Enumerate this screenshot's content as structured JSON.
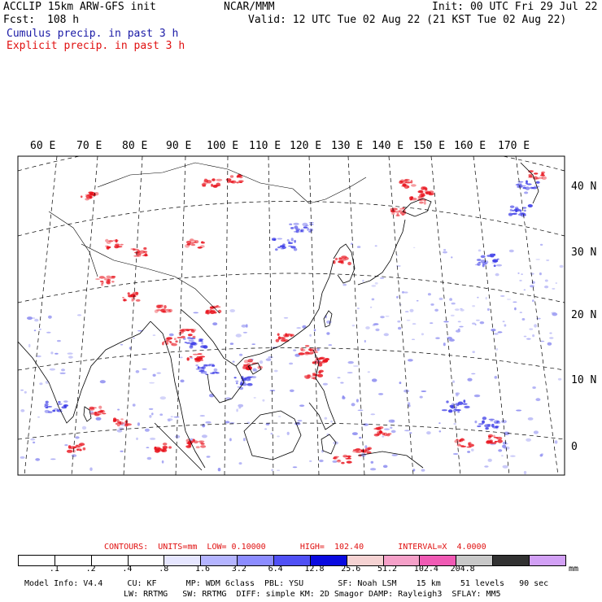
{
  "header": {
    "model": "ACCLIP 15km ARW-GFS init",
    "org": "NCAR/MMM",
    "init": "Init: 00 UTC Fri 29 Jul 22",
    "fcst_label": "Fcst:",
    "fcst_value": "108 h",
    "valid": "Valid: 12 UTC Tue 02 Aug 22 (21 KST Tue 02 Aug 22)",
    "legend_cumulus": "Cumulus precip. in past 3 h",
    "legend_explicit": "Explicit precip. in past 3 h"
  },
  "map": {
    "lon_labels": [
      "60 E",
      "70 E",
      "80 E",
      "90 E",
      "100 E",
      "110 E",
      "120 E",
      "130 E",
      "140 E",
      "150 E",
      "160 E",
      "170 E"
    ],
    "lat_labels": [
      "40 N",
      "30 N",
      "20 N",
      "10 N",
      "0"
    ],
    "colors": {
      "cumulus": "#3a3ae6",
      "explicit": "#e8101a",
      "coast": "#000000",
      "grid": "#000000"
    }
  },
  "contours": {
    "label": "CONTOURS:  UNITS=mm  LOW= 0.10000       HIGH=  102.40       INTERVAL=X  4.0000"
  },
  "colorbar": {
    "colors": [
      "#ffffff",
      "#ffffff",
      "#ffffff",
      "#ffffff",
      "#e6e6ff",
      "#b4b4ff",
      "#8c8cff",
      "#5050f5",
      "#0a0ae0",
      "#f5d2d2",
      "#f5a0c8",
      "#f05ab4",
      "#c8c8c8",
      "#323232",
      "#d2a0f5"
    ],
    "ticks": [
      ".1",
      ".2",
      ".4",
      ".8",
      "1.6",
      "3.2",
      "6.4",
      "12.8",
      "25.6",
      "51.2",
      "102.4",
      "204.8"
    ],
    "unit": "mm"
  },
  "footer": {
    "line1": "Model Info: V4.4     CU: KF      MP: WDM 6class  PBL: YSU       SF: Noah LSM    15 km    51 levels   90 sec",
    "line2": "LW: RRTMG   SW: RRTMG  DIFF: simple KM: 2D Smagor DAMP: Rayleigh3  SFLAY: MM5"
  }
}
